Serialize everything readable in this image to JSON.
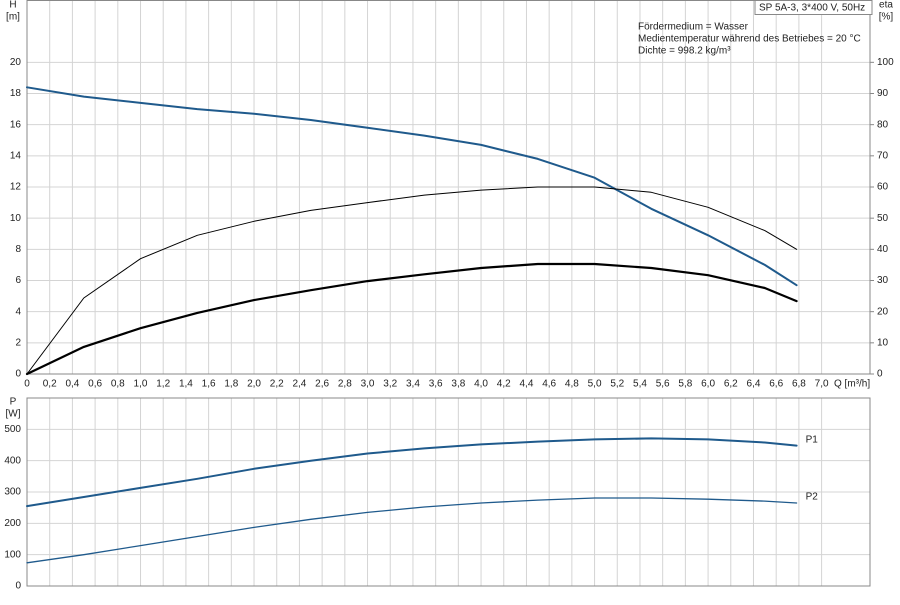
{
  "chart_data": [
    {
      "type": "line",
      "title": "SP 5A-3, 3*400 V, 50Hz",
      "annotations": [
        "Fördermedium = Wasser",
        "Medientemperatur während des Betriebes = 20 °C",
        "Dichte = 998.2 kg/m³"
      ],
      "y_label": "H",
      "y_unit": "[m]",
      "y2_label": "eta",
      "y2_unit": "[%]",
      "x_label": "Q [m³/h]",
      "x": [
        0,
        0.5,
        1,
        1.5,
        2,
        2.5,
        3,
        3.5,
        4,
        4.5,
        5,
        5.5,
        6,
        6.5,
        6.78
      ],
      "xlim": [
        0,
        7.4
      ],
      "xticks": [
        0,
        {
          "value": 0.2,
          "label": "0,2"
        },
        {
          "value": 0.4,
          "label": "0,4"
        },
        {
          "value": 0.6,
          "label": "0,6"
        },
        {
          "value": 0.8,
          "label": "0,8"
        },
        {
          "value": 1.0,
          "label": "1,0"
        },
        {
          "value": 1.2,
          "label": "1,2"
        },
        {
          "value": 1.4,
          "label": "1,4"
        },
        {
          "value": 1.6,
          "label": "1,6"
        },
        {
          "value": 1.8,
          "label": "1,8"
        },
        {
          "value": 2.0,
          "label": "2,0"
        },
        {
          "value": 2.2,
          "label": "2,2"
        },
        {
          "value": 2.4,
          "label": "2,4"
        },
        {
          "value": 2.6,
          "label": "2,6"
        },
        {
          "value": 2.8,
          "label": "2,8"
        },
        {
          "value": 3.0,
          "label": "3,0"
        },
        {
          "value": 3.2,
          "label": "3,2"
        },
        {
          "value": 3.4,
          "label": "3,4"
        },
        {
          "value": 3.6,
          "label": "3,6"
        },
        {
          "value": 3.8,
          "label": "3,8"
        },
        {
          "value": 4.0,
          "label": "4,0"
        },
        {
          "value": 4.2,
          "label": "4,2"
        },
        {
          "value": 4.4,
          "label": "4,4"
        },
        {
          "value": 4.6,
          "label": "4,6"
        },
        {
          "value": 4.8,
          "label": "4,8"
        },
        {
          "value": 5.0,
          "label": "5,0"
        },
        {
          "value": 5.2,
          "label": "5,2"
        },
        {
          "value": 5.4,
          "label": "5,4"
        },
        {
          "value": 5.6,
          "label": "5,6"
        },
        {
          "value": 5.8,
          "label": "5,8"
        },
        {
          "value": 6.0,
          "label": "6,0"
        },
        {
          "value": 6.2,
          "label": "6,2"
        },
        {
          "value": 6.4,
          "label": "6,4"
        },
        {
          "value": 6.6,
          "label": "6,6"
        },
        {
          "value": 6.8,
          "label": "6,8"
        },
        {
          "value": 7.0,
          "label": "7,0"
        }
      ],
      "ylim": [
        0,
        24
      ],
      "yticks": [
        0,
        2,
        4,
        6,
        8,
        10,
        12,
        14,
        16,
        18,
        20
      ],
      "y2lim": [
        0,
        120
      ],
      "y2ticks": [
        0,
        10,
        20,
        30,
        40,
        50,
        60,
        70,
        80,
        90,
        100
      ],
      "grid": true,
      "series": [
        {
          "color": "#1f5a8c",
          "line_width": 2,
          "values": [
            18.4,
            17.8,
            17.4,
            17.0,
            16.7,
            16.3,
            15.8,
            15.3,
            14.7,
            13.8,
            12.6,
            10.6,
            8.9,
            7.0,
            5.7
          ]
        },
        {
          "color": "#000000",
          "line_width": 1,
          "axis": "y2",
          "values": [
            0,
            24.4,
            37,
            44.5,
            49,
            52.5,
            55,
            57.4,
            59,
            60,
            60,
            58.3,
            53.5,
            46,
            40
          ]
        },
        {
          "color": "#000000",
          "line_width": 2.2,
          "axis": "y2",
          "values": [
            0,
            8.7,
            14.7,
            19.6,
            23.7,
            26.9,
            29.8,
            32,
            34,
            35.3,
            35.3,
            34,
            31.7,
            27.6,
            23.4
          ]
        }
      ]
    },
    {
      "type": "line",
      "y_label": "P",
      "y_unit": "[W]",
      "x": [
        0,
        0.5,
        1,
        1.5,
        2,
        2.5,
        3,
        3.5,
        4,
        4.5,
        5,
        5.5,
        6,
        6.5,
        6.78
      ],
      "xlim": [
        0,
        7.4
      ],
      "ylim": [
        0,
        600
      ],
      "yticks": [
        0,
        100,
        200,
        300,
        400,
        500
      ],
      "grid": true,
      "series": [
        {
          "name": "P1",
          "color": "#1f5a8c",
          "line_width": 2,
          "values": [
            255,
            284,
            313,
            342,
            374,
            400,
            423,
            439,
            452,
            461,
            468,
            471,
            468,
            458,
            448
          ]
        },
        {
          "name": "P2",
          "color": "#1f5a8c",
          "line_width": 1.3,
          "values": [
            74,
            100,
            129,
            158,
            187,
            213,
            235,
            252,
            265,
            274,
            281,
            281,
            277,
            271,
            265
          ]
        }
      ]
    }
  ]
}
